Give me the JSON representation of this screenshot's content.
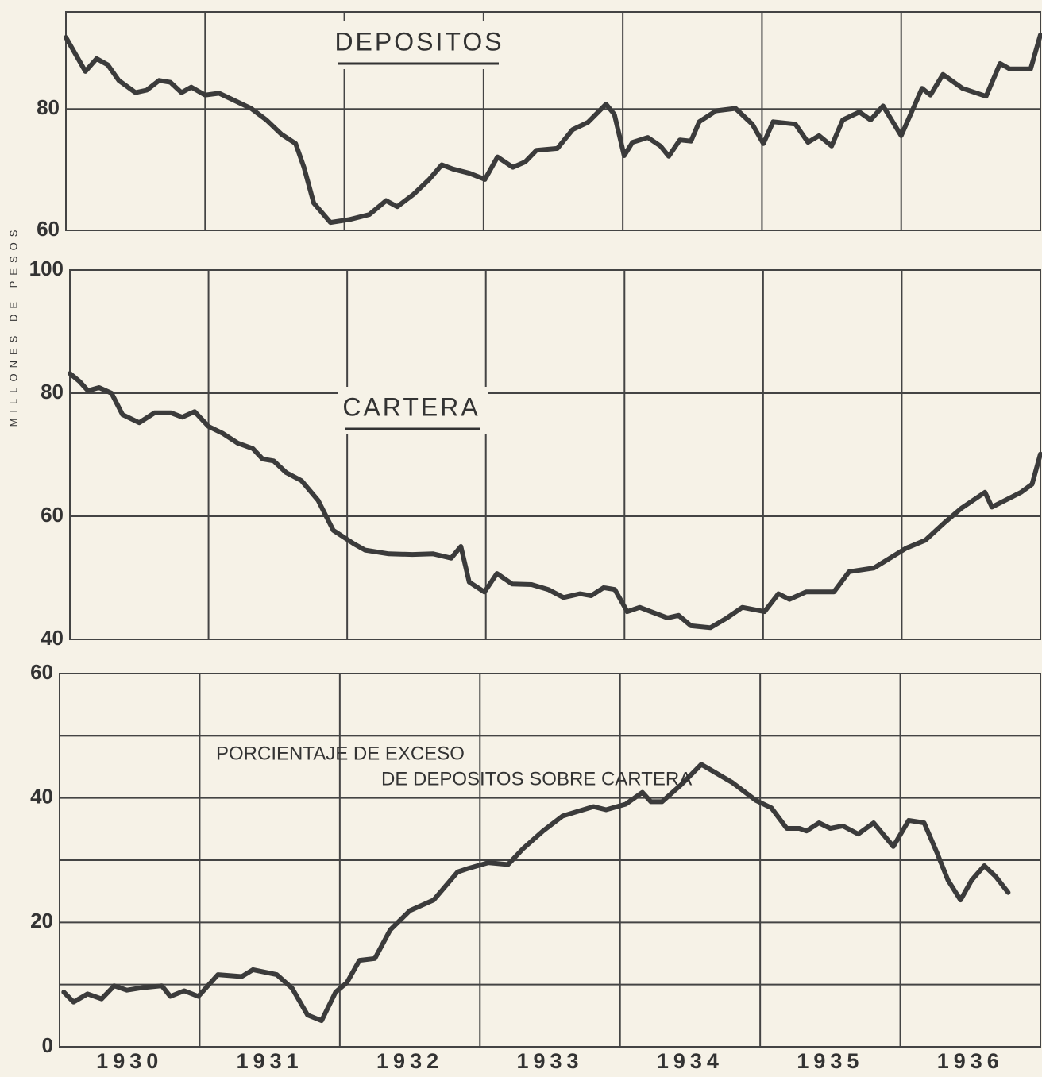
{
  "ylabel": "MILLONES DE PESOS",
  "chart_data": [
    {
      "type": "line",
      "title": "DEPOSITOS",
      "color": "#3b3b3b",
      "xlim": [
        1930,
        1937
      ],
      "xgrid": [
        1931,
        1932,
        1933,
        1934,
        1935,
        1936
      ],
      "ylim": [
        60,
        96
      ],
      "yticks": [
        60,
        80
      ],
      "x": [
        1930.0,
        1930.14,
        1930.22,
        1930.3,
        1930.38,
        1930.5,
        1930.58,
        1930.67,
        1930.75,
        1930.83,
        1930.9,
        1931.0,
        1931.1,
        1931.21,
        1931.33,
        1931.44,
        1931.55,
        1931.65,
        1931.71,
        1931.78,
        1931.9,
        1932.04,
        1932.18,
        1932.3,
        1932.38,
        1932.5,
        1932.61,
        1932.7,
        1932.78,
        1932.9,
        1933.01,
        1933.1,
        1933.21,
        1933.3,
        1933.38,
        1933.53,
        1933.64,
        1933.75,
        1933.88,
        1933.94,
        1934.01,
        1934.07,
        1934.18,
        1934.27,
        1934.33,
        1934.41,
        1934.49,
        1934.55,
        1934.67,
        1934.81,
        1934.93,
        1935.01,
        1935.08,
        1935.24,
        1935.33,
        1935.41,
        1935.5,
        1935.58,
        1935.7,
        1935.78,
        1935.87,
        1936.0,
        1936.15,
        1936.21,
        1936.3,
        1936.44,
        1936.61,
        1936.71,
        1936.78,
        1936.93,
        1937.0
      ],
      "values": [
        91.8,
        86.2,
        88.3,
        87.3,
        84.7,
        82.7,
        83.1,
        84.7,
        84.4,
        82.7,
        83.6,
        82.3,
        82.6,
        81.4,
        80.1,
        78.2,
        75.8,
        74.3,
        70.4,
        64.5,
        61.3,
        61.8,
        62.6,
        64.9,
        63.9,
        66.0,
        68.4,
        70.8,
        70.1,
        69.4,
        68.4,
        72.1,
        70.4,
        71.3,
        73.2,
        73.5,
        76.6,
        77.8,
        80.8,
        79.1,
        72.3,
        74.5,
        75.3,
        73.9,
        72.2,
        74.9,
        74.7,
        77.9,
        79.7,
        80.1,
        77.5,
        74.3,
        77.9,
        77.5,
        74.5,
        75.6,
        73.9,
        78.2,
        79.5,
        78.2,
        80.5,
        75.6,
        83.4,
        82.3,
        85.7,
        83.4,
        82.1,
        87.5,
        86.6,
        86.6,
        92.2
      ]
    },
    {
      "type": "line",
      "title": "CARTERA",
      "color": "#3b3b3b",
      "xlim": [
        1930,
        1937
      ],
      "xgrid": [
        1931,
        1932,
        1933,
        1934,
        1935,
        1936
      ],
      "ylim": [
        40,
        100
      ],
      "yticks": [
        40,
        60,
        80,
        100
      ],
      "x": [
        1930.0,
        1930.07,
        1930.13,
        1930.21,
        1930.3,
        1930.38,
        1930.5,
        1930.61,
        1930.73,
        1930.81,
        1930.9,
        1931.0,
        1931.1,
        1931.21,
        1931.32,
        1931.39,
        1931.47,
        1931.56,
        1931.67,
        1931.79,
        1931.9,
        1932.05,
        1932.13,
        1932.3,
        1932.47,
        1932.62,
        1932.75,
        1932.82,
        1932.88,
        1932.99,
        1933.08,
        1933.19,
        1933.33,
        1933.45,
        1933.56,
        1933.68,
        1933.76,
        1933.85,
        1933.93,
        1934.02,
        1934.11,
        1934.19,
        1934.31,
        1934.39,
        1934.48,
        1934.62,
        1934.74,
        1934.85,
        1935.01,
        1935.11,
        1935.19,
        1935.31,
        1935.51,
        1935.62,
        1935.8,
        1936.03,
        1936.17,
        1936.31,
        1936.43,
        1936.6,
        1936.65,
        1936.86,
        1936.94,
        1937.0
      ],
      "values": [
        83.2,
        81.9,
        80.4,
        80.9,
        80.0,
        76.5,
        75.2,
        76.8,
        76.8,
        76.1,
        77.0,
        74.6,
        73.5,
        71.9,
        71.0,
        69.3,
        69.0,
        67.1,
        65.8,
        62.6,
        57.7,
        55.5,
        54.5,
        53.9,
        53.8,
        53.9,
        53.2,
        55.1,
        49.3,
        47.7,
        50.7,
        49.0,
        48.9,
        48.1,
        46.8,
        47.4,
        47.1,
        48.4,
        48.1,
        44.5,
        45.2,
        44.5,
        43.5,
        43.9,
        42.2,
        41.9,
        43.5,
        45.2,
        44.5,
        47.4,
        46.5,
        47.7,
        47.7,
        51.0,
        51.6,
        54.8,
        56.1,
        59.0,
        61.3,
        63.9,
        61.5,
        63.9,
        65.2,
        70.1
      ]
    },
    {
      "type": "line",
      "annotation": [
        "PORCIENTAJE DE EXCESO",
        "DE DEPOSITOS SOBRE CARTERA"
      ],
      "color": "#3b3b3b",
      "xlim": [
        1930,
        1937
      ],
      "xgrid": [
        1931,
        1932,
        1933,
        1934,
        1935,
        1936
      ],
      "xticks": [
        {
          "value": 1930.5,
          "label": "1930"
        },
        {
          "value": 1931.5,
          "label": "1931"
        },
        {
          "value": 1932.5,
          "label": "1932"
        },
        {
          "value": 1933.5,
          "label": "1933"
        },
        {
          "value": 1934.5,
          "label": "1934"
        },
        {
          "value": 1935.5,
          "label": "1935"
        },
        {
          "value": 1936.5,
          "label": "1936"
        }
      ],
      "ylim": [
        0,
        60
      ],
      "yticks": [
        0,
        20,
        40,
        60
      ],
      "minor_yticks": [
        10,
        30,
        50
      ],
      "x": [
        1930.03,
        1930.1,
        1930.2,
        1930.3,
        1930.39,
        1930.48,
        1930.59,
        1930.73,
        1930.79,
        1930.89,
        1930.99,
        1931.13,
        1931.3,
        1931.38,
        1931.55,
        1931.66,
        1931.77,
        1931.87,
        1931.97,
        1932.05,
        1932.14,
        1932.25,
        1932.36,
        1932.5,
        1932.67,
        1932.84,
        1932.92,
        1933.06,
        1933.2,
        1933.31,
        1933.45,
        1933.59,
        1933.81,
        1933.9,
        1934.04,
        1934.16,
        1934.22,
        1934.3,
        1934.44,
        1934.58,
        1934.8,
        1934.97,
        1935.08,
        1935.19,
        1935.28,
        1935.33,
        1935.42,
        1935.5,
        1935.59,
        1935.7,
        1935.81,
        1935.95,
        1936.06,
        1936.17,
        1936.26,
        1936.34,
        1936.43,
        1936.51,
        1936.6,
        1936.68,
        1936.77
      ],
      "values": [
        8.8,
        7.2,
        8.5,
        7.7,
        9.8,
        9.1,
        9.5,
        9.8,
        8.1,
        9.0,
        8.1,
        11.6,
        11.3,
        12.4,
        11.6,
        9.4,
        5.1,
        4.2,
        8.8,
        10.3,
        13.9,
        14.2,
        18.8,
        21.9,
        23.6,
        28.1,
        28.7,
        29.6,
        29.3,
        31.9,
        34.7,
        37.1,
        38.6,
        38.1,
        39.0,
        40.9,
        39.4,
        39.4,
        42.2,
        45.4,
        42.5,
        39.6,
        38.4,
        35.1,
        35.1,
        34.7,
        36.0,
        35.1,
        35.5,
        34.2,
        36.0,
        32.2,
        36.4,
        36.0,
        31.3,
        26.8,
        23.6,
        26.8,
        29.1,
        27.4,
        24.8
      ]
    }
  ]
}
